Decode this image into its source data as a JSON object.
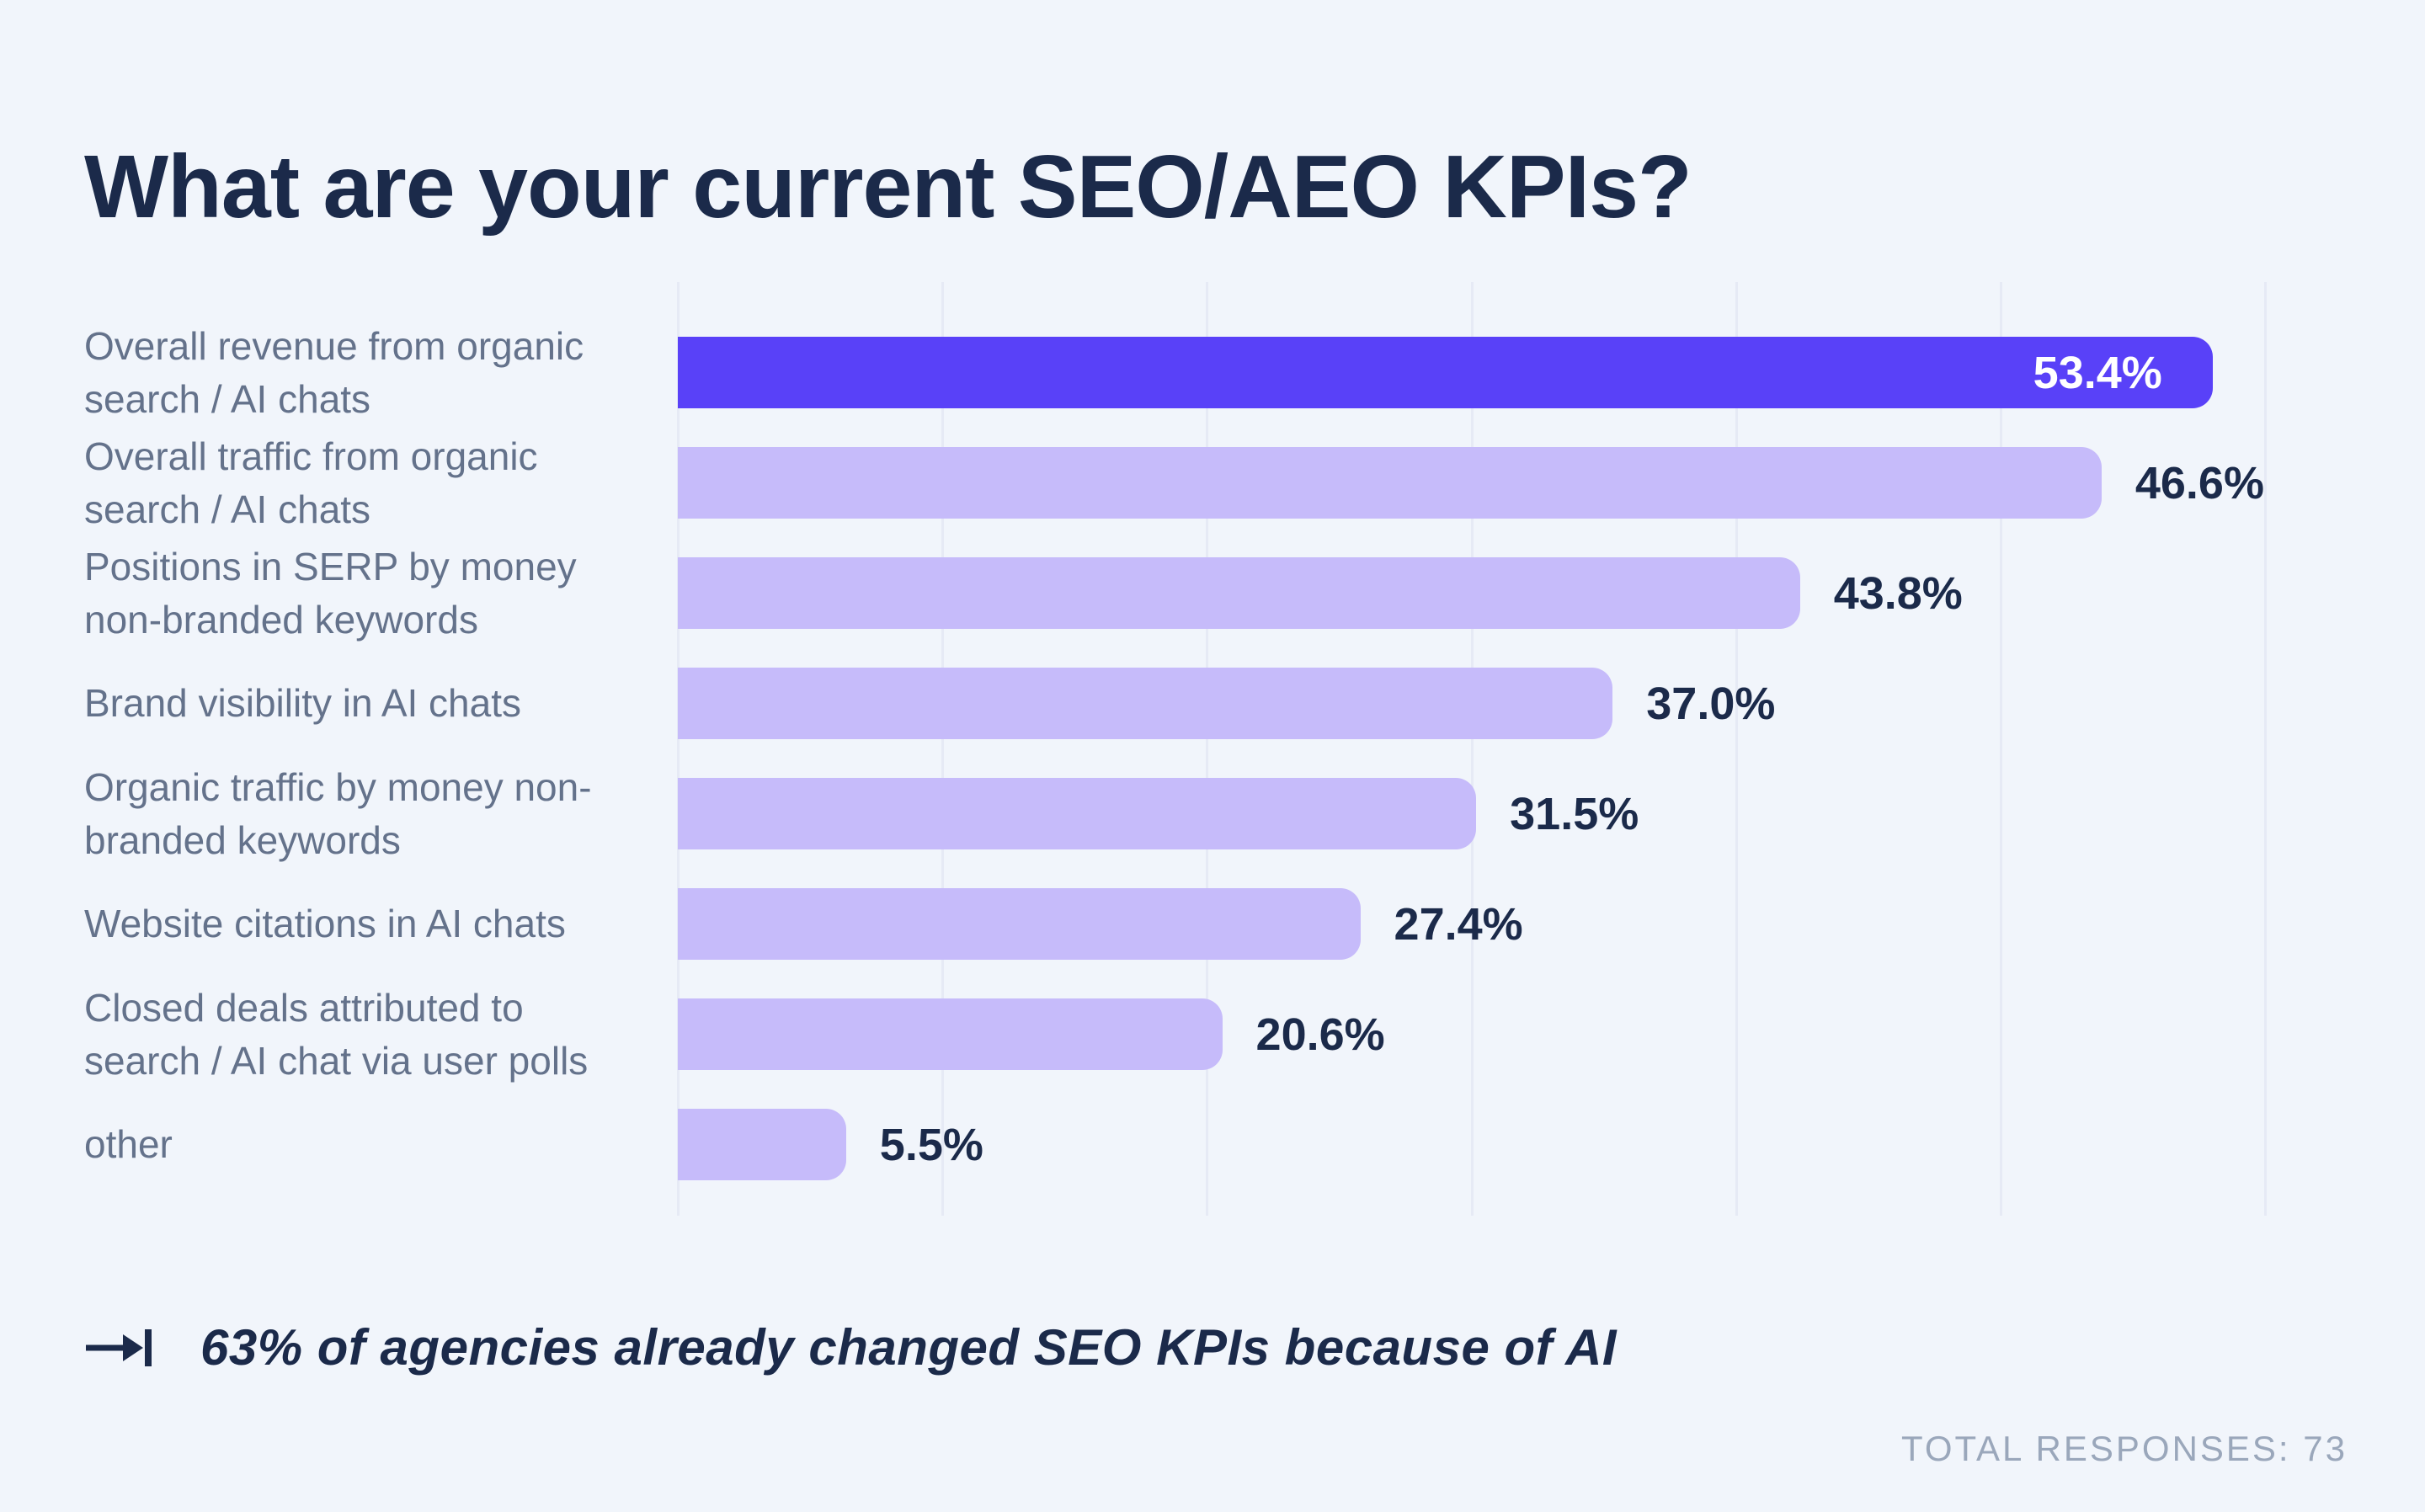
{
  "title": "What are your current SEO/AEO KPIs?",
  "chart_data": {
    "type": "bar",
    "orientation": "horizontal",
    "title": "What are your current SEO/AEO KPIs?",
    "categories": [
      "Overall revenue from organic search / AI chats",
      "Overall traffic from organic search / AI chats",
      "Positions in SERP by money non-branded keywords",
      "Brand visibility in AI chats",
      "Organic traffic by money non-branded keywords",
      "Website citations in AI chats",
      "Closed deals attributed to search / AI chat via user polls",
      "other"
    ],
    "values": [
      53.4,
      46.6,
      43.8,
      37.0,
      31.5,
      27.4,
      20.6,
      5.5
    ],
    "value_labels": [
      "53.4%",
      "46.6%",
      "43.8%",
      "37.0%",
      "31.5%",
      "27.4%",
      "20.6%",
      "5.5%"
    ],
    "highlight_index": 0,
    "colors": {
      "highlight_bar": "#5941F8",
      "default_bar": "#C6BBFA",
      "value_label": "#1B2A4A",
      "value_label_on_highlight": "#FFFFFF",
      "category_label": "#64728B",
      "background": "#F1F5FB",
      "gridline": "#E6EAF5"
    },
    "layout": {
      "grid_on": true,
      "gridline_count": 7,
      "xlim": [
        0,
        60
      ],
      "grid_step_pct": 10,
      "bar_length_pct_of_track": [
        96.7,
        89.7,
        70.7,
        58.9,
        50.3,
        43.0,
        34.3,
        10.6
      ],
      "value_label_inside_highlight": true
    }
  },
  "annotation": {
    "arrow_icon": "arrow-to-bar",
    "text": "63% of agencies already changed SEO KPIs because of AI"
  },
  "footer": {
    "total_responses": "TOTAL RESPONSES: 73"
  }
}
